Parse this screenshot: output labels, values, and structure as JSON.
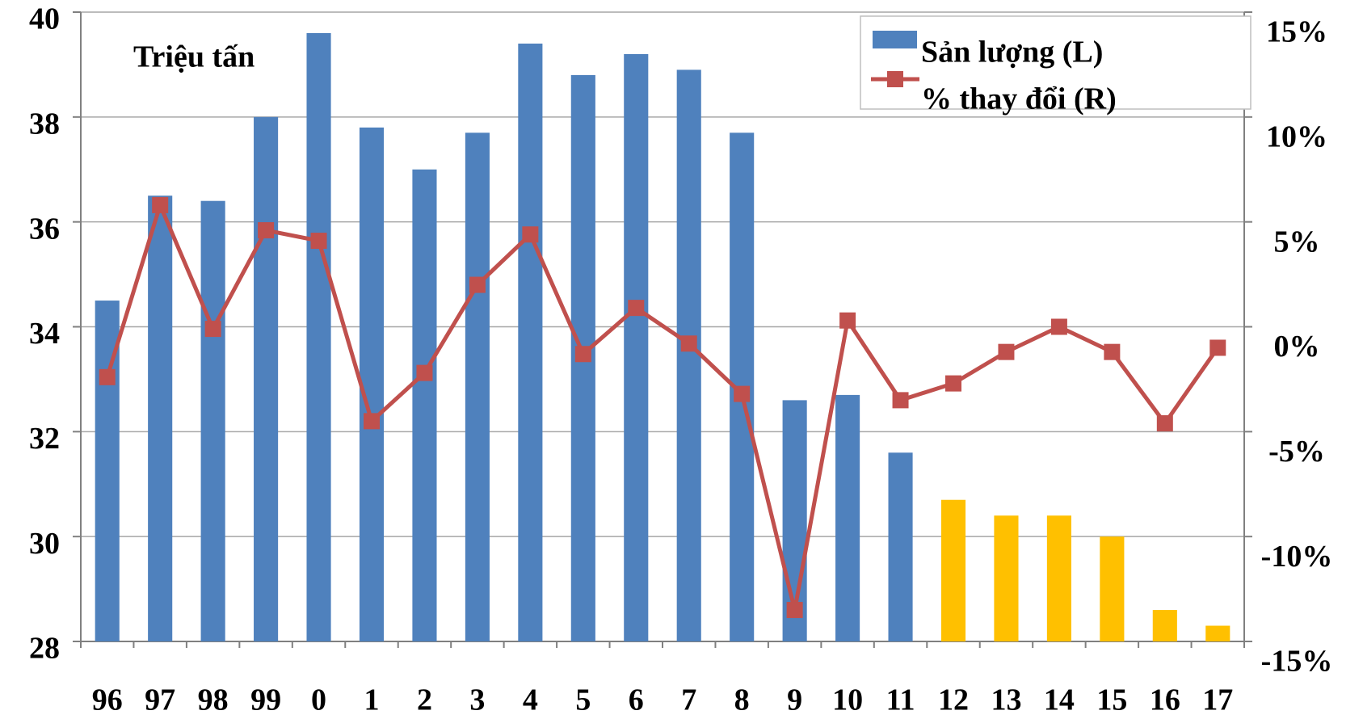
{
  "chart_data": {
    "type": "bar-line",
    "annotation": "Triệu tấn",
    "categories": [
      "96",
      "97",
      "98",
      "99",
      "0",
      "1",
      "2",
      "3",
      "4",
      "5",
      "6",
      "7",
      "8",
      "9",
      "10",
      "11",
      "12",
      "13",
      "14",
      "15",
      "16",
      "17"
    ],
    "series": [
      {
        "name": "Sản lượng (L)",
        "type": "bar",
        "color": "#4f81bd",
        "colors": [
          "#4f81bd",
          "#4f81bd",
          "#4f81bd",
          "#4f81bd",
          "#4f81bd",
          "#4f81bd",
          "#4f81bd",
          "#4f81bd",
          "#4f81bd",
          "#4f81bd",
          "#4f81bd",
          "#4f81bd",
          "#4f81bd",
          "#4f81bd",
          "#4f81bd",
          "#4f81bd",
          "#ffc000",
          "#ffc000",
          "#ffc000",
          "#ffc000",
          "#ffc000",
          "#ffc000"
        ],
        "values": [
          34.5,
          36.5,
          36.4,
          38.0,
          39.6,
          37.8,
          37.0,
          37.7,
          39.4,
          38.8,
          39.2,
          38.9,
          37.7,
          32.6,
          32.7,
          31.6,
          30.7,
          30.4,
          30.4,
          30.0,
          28.6,
          28.3
        ]
      },
      {
        "name": "% thay đổi (R)",
        "type": "line",
        "axis": "y2",
        "color": "#c0504d",
        "values": [
          -2.4,
          5.8,
          -0.1,
          4.6,
          4.1,
          -4.5,
          -2.2,
          2.0,
          4.4,
          -1.3,
          0.9,
          -0.8,
          -3.2,
          -13.5,
          0.3,
          -3.5,
          -2.7,
          -1.2,
          0.0,
          -1.2,
          -4.6,
          -1.0
        ]
      }
    ],
    "ylim": [
      28,
      40
    ],
    "yticks": [
      28,
      30,
      32,
      34,
      36,
      38,
      40
    ],
    "y2lim": [
      -15,
      15
    ],
    "y2ticks": [
      {
        "value": -15,
        "label": "-15%"
      },
      {
        "value": -10,
        "label": "-10%"
      },
      {
        "value": -5,
        "label": "-5%"
      },
      {
        "value": 0,
        "label": "0%"
      },
      {
        "value": 5,
        "label": "5%"
      },
      {
        "value": 10,
        "label": "10%"
      },
      {
        "value": 15,
        "label": "15%"
      }
    ],
    "grid": true,
    "legend": "top-right"
  }
}
